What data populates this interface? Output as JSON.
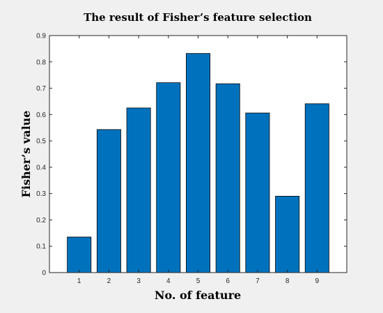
{
  "chart_data": {
    "type": "bar",
    "title": "The result of Fisher’s feature selection",
    "xlabel": "No. of feature",
    "ylabel": "Fisher’s value",
    "categories": [
      "1",
      "2",
      "3",
      "4",
      "5",
      "6",
      "7",
      "8",
      "9"
    ],
    "values": [
      0.135,
      0.543,
      0.625,
      0.721,
      0.832,
      0.717,
      0.606,
      0.29,
      0.641
    ],
    "xlim": [
      0,
      10
    ],
    "ylim": [
      0,
      0.9
    ],
    "yticks": [
      "0",
      "0.1",
      "0.2",
      "0.3",
      "0.4",
      "0.5",
      "0.6",
      "0.7",
      "0.8",
      "0.9"
    ],
    "grid": false,
    "bar_color": "#0072BD",
    "bar_edge_color": "#000000"
  }
}
